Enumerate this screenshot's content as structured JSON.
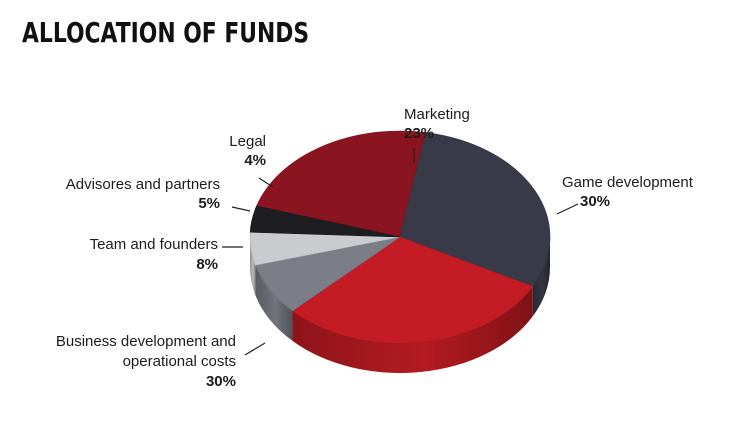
{
  "title": "ALLOCATION OF FUNDS",
  "chart_data": {
    "type": "pie",
    "title": "ALLOCATION OF FUNDS",
    "slices": [
      {
        "label": "Marketing",
        "value": 23,
        "pct_label": "23%",
        "color": "#8a1520"
      },
      {
        "label": "Game development",
        "value": 30,
        "pct_label": "30%",
        "color": "#383a47"
      },
      {
        "label": "Business development and operational costs",
        "label_lines": [
          "Business development and",
          "operational costs"
        ],
        "value": 30,
        "pct_label": "30%",
        "color": "#c41c24"
      },
      {
        "label": "Team and founders",
        "value": 8,
        "pct_label": "8%",
        "color": "#7b7e87"
      },
      {
        "label": "Advisores and partners",
        "value": 5,
        "pct_label": "5%",
        "color": "#c9cbcf"
      },
      {
        "label": "Legal",
        "value": 4,
        "pct_label": "4%",
        "color": "#1e1e22"
      }
    ],
    "style": "3d-pie",
    "legend": "none"
  }
}
